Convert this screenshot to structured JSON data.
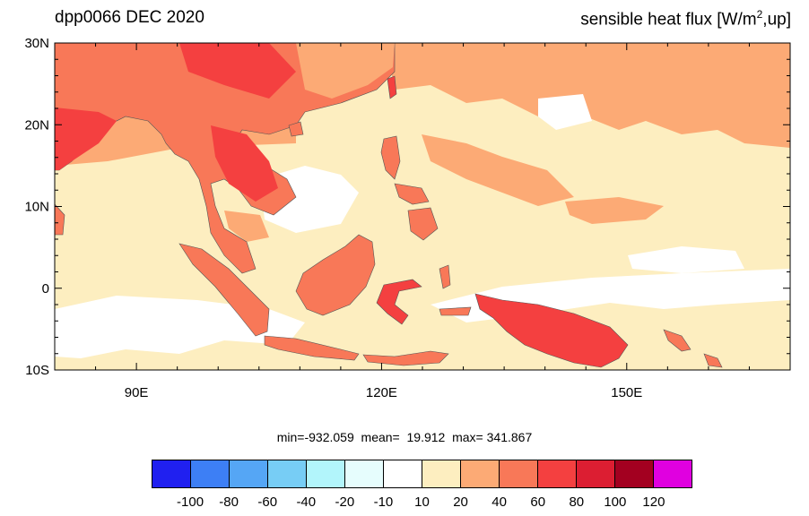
{
  "title": {
    "left": "dpp0066 DEC 2020",
    "right_prefix": "sensible heat flux [W/m",
    "right_sup": "2",
    "right_suffix": ",up]"
  },
  "axes": {
    "lat_ticks": [
      {
        "value": 30,
        "label": "30N"
      },
      {
        "value": 20,
        "label": "20N"
      },
      {
        "value": 10,
        "label": "10N"
      },
      {
        "value": 0,
        "label": "0"
      },
      {
        "value": -10,
        "label": "10S"
      }
    ],
    "lon_ticks": [
      {
        "value": 90,
        "label": "90E"
      },
      {
        "value": 120,
        "label": "120E"
      },
      {
        "value": 150,
        "label": "150E"
      }
    ],
    "lon_range": [
      80,
      170
    ],
    "lat_range": [
      -10,
      30
    ]
  },
  "stats_text": "min=-932.059  mean=  19.912  max= 341.867",
  "colorbar": {
    "colors": [
      "#2020f0",
      "#3d7ff5",
      "#55a6f5",
      "#77cdf5",
      "#b2f5fb",
      "#e6fdfd",
      "#ffffff",
      "#fdeec0",
      "#fcaa75",
      "#f87858",
      "#f44040",
      "#dc1e32",
      "#a30020",
      "#e000e0"
    ],
    "labels": [
      "-100",
      "-80",
      "-60",
      "-40",
      "-20",
      "-10",
      "10",
      "20",
      "40",
      "60",
      "80",
      "100",
      "120"
    ]
  },
  "map_colors": {
    "ocean_base": "#fdeec0",
    "ocean_warm": "#fcaa75",
    "ocean_neutral": "#ffffff",
    "land": "#f87858",
    "land_hot": "#f44040",
    "coast": "#555555"
  }
}
